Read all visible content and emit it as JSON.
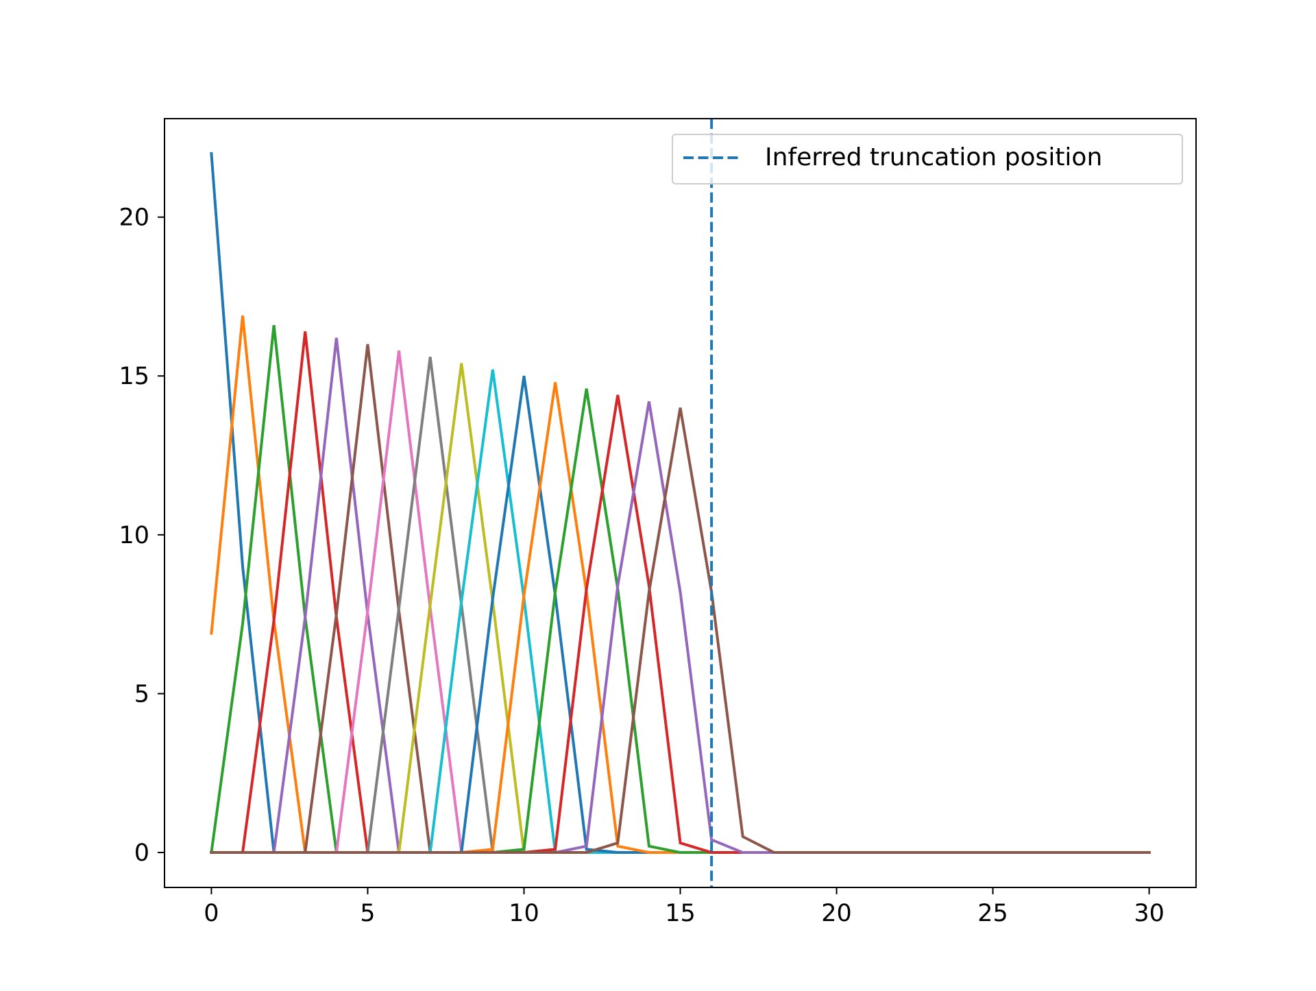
{
  "chart_data": {
    "type": "line",
    "title": "",
    "xlabel": "",
    "ylabel": "",
    "xlim": [
      -1.5,
      31.5
    ],
    "ylim": [
      -1.1,
      23.1
    ],
    "x_ticks": [
      0,
      5,
      10,
      15,
      20,
      25,
      30
    ],
    "y_ticks": [
      0,
      5,
      10,
      15,
      20
    ],
    "x_tick_labels": [
      "0",
      "5",
      "10",
      "15",
      "20",
      "25",
      "30"
    ],
    "y_tick_labels": [
      "0",
      "5",
      "10",
      "15",
      "20"
    ],
    "grid": false,
    "legend": {
      "location": "upper right",
      "entries": [
        "Inferred truncation position"
      ]
    },
    "palette": [
      "#1f77b4",
      "#ff7f0e",
      "#2ca02c",
      "#d62728",
      "#9467bd",
      "#8c564b",
      "#e377c2",
      "#7f7f7f",
      "#bcbd22",
      "#17becf"
    ],
    "x": [
      0,
      1,
      2,
      3,
      4,
      5,
      6,
      7,
      8,
      9,
      10,
      11,
      12,
      13,
      14,
      15,
      16,
      17,
      18,
      19,
      20,
      21,
      22,
      23,
      24,
      25,
      26,
      27,
      28,
      29,
      30
    ],
    "series": [
      {
        "color": "#1f77b4",
        "peak_index": 0,
        "values": [
          22.0,
          9.0,
          0.0,
          0,
          0,
          0,
          0,
          0,
          0,
          0,
          0,
          0,
          0,
          0,
          0,
          0,
          0,
          0,
          0,
          0,
          0,
          0,
          0,
          0,
          0,
          0,
          0,
          0,
          0,
          0,
          0
        ]
      },
      {
        "color": "#ff7f0e",
        "peak_index": 1,
        "values": [
          6.9,
          16.9,
          7.3,
          0.0,
          0,
          0,
          0,
          0,
          0,
          0,
          0,
          0,
          0,
          0,
          0,
          0,
          0,
          0,
          0,
          0,
          0,
          0,
          0,
          0,
          0,
          0,
          0,
          0,
          0,
          0,
          0
        ]
      },
      {
        "color": "#2ca02c",
        "peak_index": 2,
        "values": [
          0.0,
          7.2,
          16.6,
          7.4,
          0.0,
          0,
          0,
          0,
          0,
          0,
          0,
          0,
          0,
          0,
          0,
          0,
          0,
          0,
          0,
          0,
          0,
          0,
          0,
          0,
          0,
          0,
          0,
          0,
          0,
          0,
          0
        ]
      },
      {
        "color": "#d62728",
        "peak_index": 3,
        "values": [
          0,
          0.0,
          7.3,
          16.4,
          7.4,
          0.0,
          0,
          0,
          0,
          0,
          0,
          0,
          0,
          0,
          0,
          0,
          0,
          0,
          0,
          0,
          0,
          0,
          0,
          0,
          0,
          0,
          0,
          0,
          0,
          0,
          0
        ]
      },
      {
        "color": "#9467bd",
        "peak_index": 4,
        "values": [
          0,
          0,
          0.0,
          7.4,
          16.2,
          7.5,
          0.0,
          0,
          0,
          0,
          0,
          0,
          0,
          0,
          0,
          0,
          0,
          0,
          0,
          0,
          0,
          0,
          0,
          0,
          0,
          0,
          0,
          0,
          0,
          0,
          0
        ]
      },
      {
        "color": "#8c564b",
        "peak_index": 5,
        "values": [
          0,
          0,
          0,
          0.0,
          7.5,
          16.0,
          7.6,
          0.0,
          0,
          0,
          0,
          0,
          0,
          0,
          0,
          0,
          0,
          0,
          0,
          0,
          0,
          0,
          0,
          0,
          0,
          0,
          0,
          0,
          0,
          0,
          0
        ]
      },
      {
        "color": "#e377c2",
        "peak_index": 6,
        "values": [
          0,
          0,
          0,
          0,
          0.0,
          7.6,
          15.8,
          7.7,
          0.0,
          0,
          0,
          0,
          0,
          0,
          0,
          0,
          0,
          0,
          0,
          0,
          0,
          0,
          0,
          0,
          0,
          0,
          0,
          0,
          0,
          0,
          0
        ]
      },
      {
        "color": "#7f7f7f",
        "peak_index": 7,
        "values": [
          0,
          0,
          0,
          0,
          0,
          0.0,
          7.7,
          15.6,
          7.8,
          0.0,
          0,
          0,
          0,
          0,
          0,
          0,
          0,
          0,
          0,
          0,
          0,
          0,
          0,
          0,
          0,
          0,
          0,
          0,
          0,
          0,
          0
        ]
      },
      {
        "color": "#bcbd22",
        "peak_index": 8,
        "values": [
          0,
          0,
          0,
          0,
          0,
          0,
          0.0,
          7.8,
          15.4,
          7.9,
          0.0,
          0,
          0,
          0,
          0,
          0,
          0,
          0,
          0,
          0,
          0,
          0,
          0,
          0,
          0,
          0,
          0,
          0,
          0,
          0,
          0
        ]
      },
      {
        "color": "#17becf",
        "peak_index": 9,
        "values": [
          0,
          0,
          0,
          0,
          0,
          0,
          0,
          0.0,
          7.9,
          15.2,
          8.0,
          0.0,
          0,
          0,
          0,
          0,
          0,
          0,
          0,
          0,
          0,
          0,
          0,
          0,
          0,
          0,
          0,
          0,
          0,
          0,
          0
        ]
      },
      {
        "color": "#1f77b4",
        "peak_index": 10,
        "values": [
          0,
          0,
          0,
          0,
          0,
          0,
          0,
          0,
          0.0,
          8.0,
          15.0,
          8.1,
          0.1,
          0,
          0,
          0,
          0,
          0,
          0,
          0,
          0,
          0,
          0,
          0,
          0,
          0,
          0,
          0,
          0,
          0,
          0
        ]
      },
      {
        "color": "#ff7f0e",
        "peak_index": 11,
        "values": [
          0,
          0,
          0,
          0,
          0,
          0,
          0,
          0,
          0,
          0.1,
          8.1,
          14.8,
          8.2,
          0.2,
          0,
          0,
          0,
          0,
          0,
          0,
          0,
          0,
          0,
          0,
          0,
          0,
          0,
          0,
          0,
          0,
          0
        ]
      },
      {
        "color": "#2ca02c",
        "peak_index": 12,
        "values": [
          0,
          0,
          0,
          0,
          0,
          0,
          0,
          0,
          0,
          0,
          0.1,
          8.2,
          14.6,
          8.3,
          0.2,
          0,
          0,
          0,
          0,
          0,
          0,
          0,
          0,
          0,
          0,
          0,
          0,
          0,
          0,
          0,
          0
        ]
      },
      {
        "color": "#d62728",
        "peak_index": 13,
        "values": [
          0,
          0,
          0,
          0,
          0,
          0,
          0,
          0,
          0,
          0,
          0,
          0.1,
          8.3,
          14.4,
          8.4,
          0.3,
          0,
          0,
          0,
          0,
          0,
          0,
          0,
          0,
          0,
          0,
          0,
          0,
          0,
          0,
          0
        ]
      },
      {
        "color": "#9467bd",
        "peak_index": 14,
        "values": [
          0,
          0,
          0,
          0,
          0,
          0,
          0,
          0,
          0,
          0,
          0,
          0,
          0.2,
          8.4,
          14.2,
          8.2,
          0.4,
          0,
          0,
          0,
          0,
          0,
          0,
          0,
          0,
          0,
          0,
          0,
          0,
          0,
          0
        ]
      },
      {
        "color": "#8c564b",
        "peak_index": 15,
        "values": [
          0,
          0,
          0,
          0,
          0,
          0,
          0,
          0,
          0,
          0,
          0,
          0,
          0,
          0.3,
          8.2,
          14.0,
          8.2,
          0.5,
          0,
          0,
          0,
          0,
          0,
          0,
          0,
          0,
          0,
          0,
          0,
          0,
          0
        ]
      }
    ],
    "annotations": [
      {
        "type": "vline",
        "x": 16,
        "style": "dashed",
        "color": "#1f77b4",
        "label": "Inferred truncation position"
      }
    ]
  }
}
